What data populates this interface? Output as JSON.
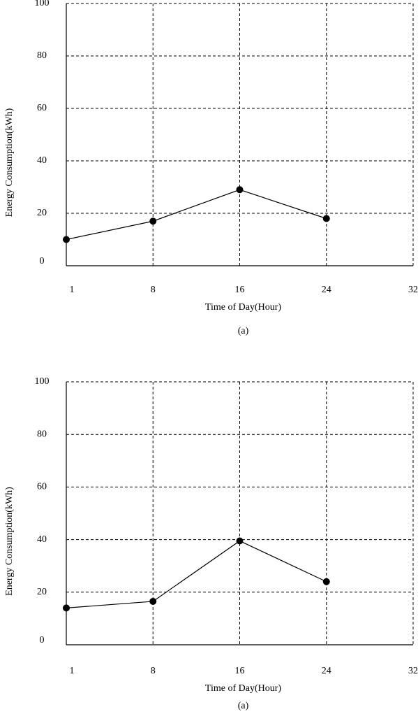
{
  "chart_data": [
    {
      "type": "line",
      "x_label": "Time of Day(Hour)",
      "y_label": "Energy Consumption(kWh)",
      "caption": "(a)",
      "categories": [
        "1",
        "8",
        "16",
        "24",
        "32"
      ],
      "values": [
        10,
        17,
        29,
        18,
        null
      ],
      "color": "#000000",
      "ylim": [
        0,
        100
      ],
      "yticks": [
        0,
        20,
        40,
        60,
        80,
        100
      ],
      "grid": true
    },
    {
      "type": "line",
      "x_label": "Time of Day(Hour)",
      "y_label": "Energy Consumption(kWh)",
      "caption": "(a)",
      "categories": [
        "1",
        "8",
        "16",
        "24",
        "32"
      ],
      "values": [
        14,
        16.5,
        39.5,
        24,
        null
      ],
      "color": "#000000",
      "ylim": [
        0,
        100
      ],
      "yticks": [
        0,
        20,
        40,
        60,
        80,
        100
      ],
      "grid": true
    }
  ]
}
